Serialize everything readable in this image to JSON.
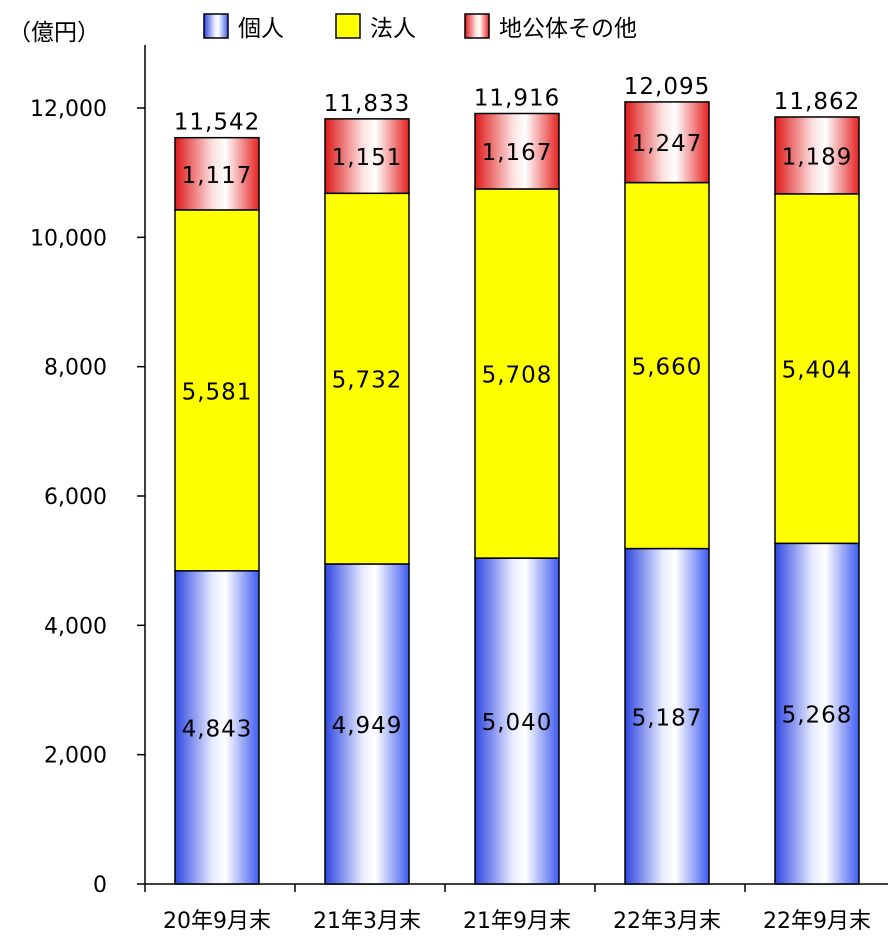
{
  "chart_data": {
    "type": "bar",
    "stacked": true,
    "unit_label": "（億円）",
    "categories": [
      "20年9月末",
      "21年3月末",
      "21年9月末",
      "22年3月末",
      "22年9月末"
    ],
    "series": [
      {
        "name": "個人",
        "values": [
          4843,
          4949,
          5040,
          5187,
          5268
        ],
        "labels": [
          "4,843",
          "4,949",
          "5,040",
          "5,187",
          "5,268"
        ],
        "color": "#3a55e8"
      },
      {
        "name": "法人",
        "values": [
          5581,
          5732,
          5708,
          5660,
          5404
        ],
        "labels": [
          "5,581",
          "5,732",
          "5,708",
          "5,660",
          "5,404"
        ],
        "color": "#ffff00"
      },
      {
        "name": "地公体その他",
        "values": [
          1117,
          1151,
          1167,
          1247,
          1189
        ],
        "labels": [
          "1,117",
          "1,151",
          "1,167",
          "1,247",
          "1,189"
        ],
        "color": "#e52222"
      }
    ],
    "totals": [
      "11,542",
      "11,833",
      "11,916",
      "12,095",
      "11,862"
    ],
    "ylim": [
      0,
      12000
    ],
    "yticks": [
      {
        "value": 0,
        "label": "0"
      },
      {
        "value": 2000,
        "label": "2,000"
      },
      {
        "value": 4000,
        "label": "4,000"
      },
      {
        "value": 6000,
        "label": "6,000"
      },
      {
        "value": 8000,
        "label": "8,000"
      },
      {
        "value": 10000,
        "label": "10,000"
      },
      {
        "value": 12000,
        "label": "12,000"
      }
    ],
    "grid": false,
    "legend_position": "top"
  }
}
